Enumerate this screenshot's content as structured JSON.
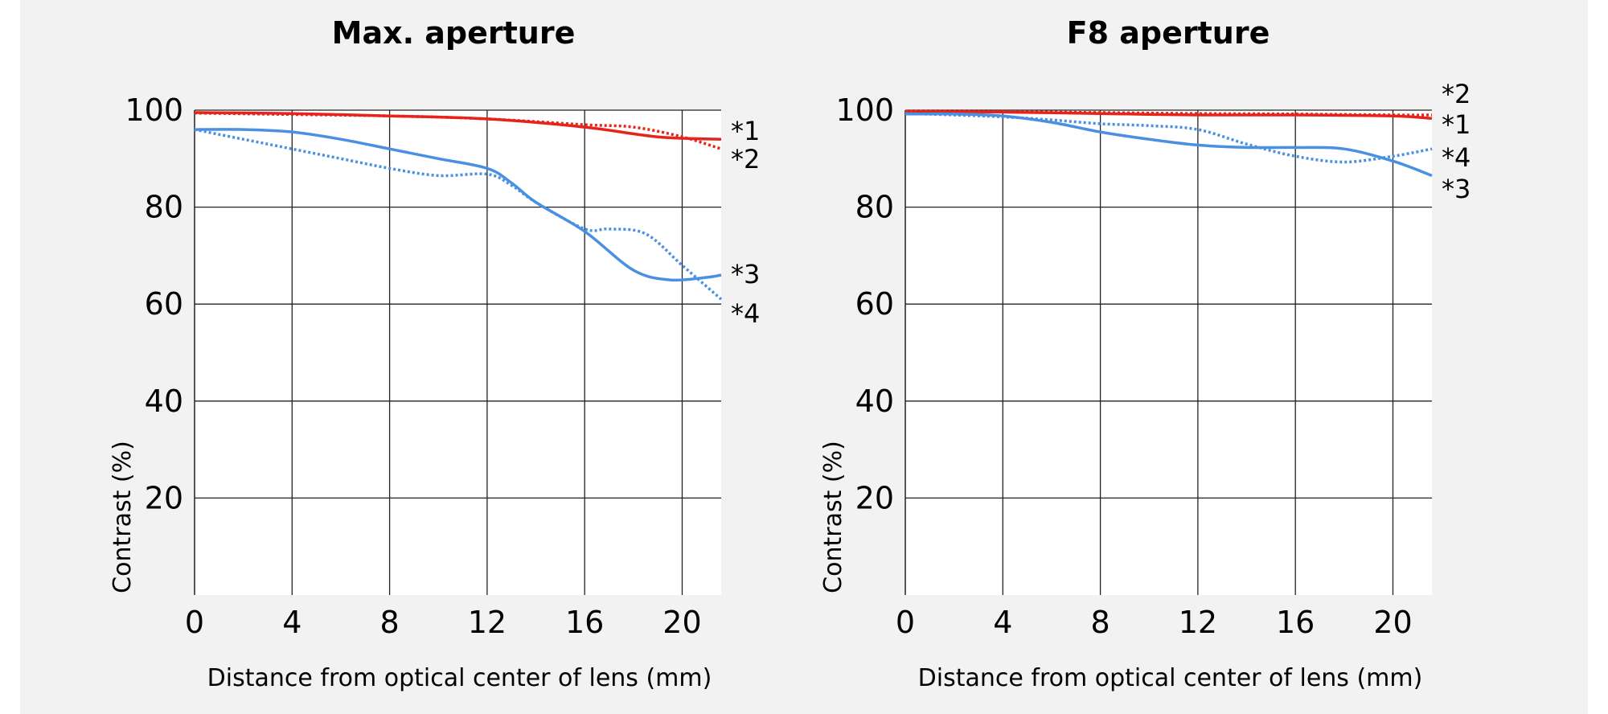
{
  "chart_data": [
    {
      "type": "line",
      "title": "Max. aperture",
      "xlabel": "Distance from optical center of lens (mm)",
      "ylabel": "Contrast (%)",
      "xlim": [
        0,
        21.6
      ],
      "ylim": [
        0,
        100
      ],
      "x_ticks": [
        0,
        4,
        8,
        12,
        16,
        20
      ],
      "y_ticks": [
        20,
        40,
        60,
        80,
        100
      ],
      "grid": true,
      "series": [
        {
          "name": "*1",
          "color": "#e8231b",
          "style": "solid",
          "x": [
            0,
            4,
            8,
            12,
            16,
            19,
            21.6
          ],
          "y": [
            99.5,
            99.3,
            98.8,
            98.2,
            96.5,
            94.5,
            94
          ]
        },
        {
          "name": "*2",
          "color": "#e8231b",
          "style": "dotted",
          "x": [
            0,
            4,
            8,
            12,
            16,
            18,
            20,
            21.6
          ],
          "y": [
            99.4,
            99.1,
            98.8,
            98.2,
            97,
            96.5,
            94.5,
            92
          ]
        },
        {
          "name": "*3",
          "color": "#4a90e2",
          "style": "solid",
          "x": [
            0,
            2,
            4,
            6,
            8,
            10,
            12,
            13,
            14,
            16,
            18,
            19.5,
            21,
            21.6
          ],
          "y": [
            96,
            96,
            95.5,
            94,
            92,
            90,
            88,
            85,
            81,
            75,
            67,
            65,
            65.5,
            66
          ]
        },
        {
          "name": "*4",
          "color": "#4a90e2",
          "style": "dotted",
          "x": [
            0,
            2,
            4,
            6,
            8,
            10,
            12,
            13,
            14,
            16,
            17,
            18.5,
            20,
            21.6
          ],
          "y": [
            96,
            94,
            92,
            90,
            88,
            86.5,
            86.8,
            84.5,
            81,
            75.5,
            75.5,
            74.5,
            68,
            61
          ]
        }
      ]
    },
    {
      "type": "line",
      "title": "F8 aperture",
      "xlabel": "Distance from optical center of lens (mm)",
      "ylabel": "Contrast (%)",
      "xlim": [
        0,
        21.6
      ],
      "ylim": [
        0,
        100
      ],
      "x_ticks": [
        0,
        4,
        8,
        12,
        16,
        20
      ],
      "y_ticks": [
        20,
        40,
        60,
        80,
        100
      ],
      "grid": true,
      "series": [
        {
          "name": "*1",
          "color": "#e8231b",
          "style": "solid",
          "x": [
            0,
            4,
            8,
            12,
            16,
            20,
            21.6
          ],
          "y": [
            99.7,
            99.6,
            99.3,
            99,
            99,
            98.8,
            98.3
          ]
        },
        {
          "name": "*2",
          "color": "#e8231b",
          "style": "dotted",
          "x": [
            0,
            4,
            8,
            12,
            16,
            20,
            21.6
          ],
          "y": [
            99.8,
            99.7,
            99.5,
            99.3,
            99.2,
            99,
            99
          ]
        },
        {
          "name": "*3",
          "color": "#4a90e2",
          "style": "solid",
          "x": [
            0,
            2,
            4,
            6,
            8,
            10,
            12,
            14,
            16,
            18,
            20,
            21.6
          ],
          "y": [
            99.2,
            99.2,
            98.8,
            97.5,
            95.5,
            94,
            92.8,
            92.3,
            92.3,
            92,
            89.5,
            86.5
          ]
        },
        {
          "name": "*4",
          "color": "#4a90e2",
          "style": "dotted",
          "x": [
            0,
            2,
            4,
            6,
            8,
            10,
            12,
            14,
            16,
            18,
            20,
            21.6
          ],
          "y": [
            99.3,
            99,
            98.6,
            98,
            97.2,
            96.8,
            96,
            93,
            90.5,
            89.3,
            90.5,
            92
          ]
        }
      ]
    }
  ]
}
